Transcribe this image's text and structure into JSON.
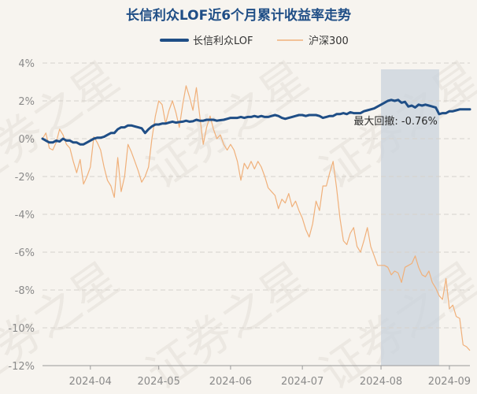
{
  "chart_data": {
    "type": "line",
    "title": "长信利众LOF近6个月累计收益率走势",
    "watermark": "证券之星",
    "ylim": [
      -12,
      4
    ],
    "y_ticks": [
      "4%",
      "2%",
      "0%",
      "-2%",
      "-4%",
      "-6%",
      "-8%",
      "-10%",
      "-12%"
    ],
    "y_tick_values": [
      4,
      2,
      0,
      -2,
      -4,
      -6,
      -8,
      -10,
      -12
    ],
    "x_ticks": [
      "2024-04",
      "2024-05",
      "2024-06",
      "2024-07",
      "2024-08",
      "2024-09"
    ],
    "x_tick_index": [
      14,
      34,
      55,
      76,
      99,
      119
    ],
    "n_points": 126,
    "max_drawdown": {
      "label": "最大回撤: -0.76%",
      "start_index": 99,
      "end_index": 116
    },
    "series": [
      {
        "name": "长信利众LOF",
        "color": "#1f4e86",
        "values": [
          0.0,
          -0.1,
          -0.2,
          -0.2,
          -0.1,
          -0.15,
          0.0,
          -0.1,
          -0.1,
          -0.2,
          -0.2,
          -0.3,
          -0.3,
          -0.2,
          -0.1,
          0.0,
          0.05,
          0.05,
          0.1,
          0.2,
          0.3,
          0.3,
          0.5,
          0.6,
          0.6,
          0.7,
          0.7,
          0.65,
          0.6,
          0.55,
          0.3,
          0.5,
          0.65,
          0.75,
          0.75,
          0.8,
          0.8,
          0.85,
          0.9,
          0.85,
          0.88,
          0.9,
          0.95,
          0.9,
          0.92,
          1.0,
          0.95,
          0.95,
          1.0,
          1.0,
          1.0,
          0.95,
          0.98,
          1.0,
          1.05,
          1.1,
          1.1,
          1.1,
          1.15,
          1.1,
          1.15,
          1.15,
          1.2,
          1.15,
          1.2,
          1.15,
          1.15,
          1.2,
          1.25,
          1.2,
          1.1,
          1.05,
          1.1,
          1.15,
          1.2,
          1.25,
          1.25,
          1.2,
          1.25,
          1.25,
          1.25,
          1.2,
          1.1,
          1.15,
          1.2,
          1.2,
          1.3,
          1.3,
          1.35,
          1.3,
          1.4,
          1.35,
          1.35,
          1.35,
          1.45,
          1.5,
          1.55,
          1.6,
          1.7,
          1.8,
          1.9,
          2.0,
          2.05,
          2.0,
          2.05,
          1.9,
          1.95,
          1.7,
          1.75,
          1.65,
          1.8,
          1.75,
          1.8,
          1.75,
          1.7,
          1.65,
          1.3,
          1.35,
          1.35,
          1.45,
          1.45,
          1.5,
          1.55,
          1.55,
          1.55,
          1.55
        ]
      },
      {
        "name": "沪深300",
        "color": "#f0b07a",
        "values": [
          0.0,
          0.3,
          -0.5,
          -0.6,
          -0.2,
          0.5,
          0.2,
          -0.3,
          -0.5,
          -1.2,
          -1.8,
          -1.1,
          -2.4,
          -2.0,
          -1.5,
          0.1,
          -0.2,
          -0.6,
          -1.5,
          -2.2,
          -2.5,
          -3.1,
          -1.0,
          -2.8,
          -2.0,
          -0.3,
          -0.7,
          -1.2,
          -1.7,
          -2.3,
          -2.0,
          -1.5,
          0.0,
          1.2,
          2.0,
          1.8,
          0.8,
          1.5,
          2.0,
          1.4,
          0.6,
          1.8,
          2.8,
          2.2,
          1.5,
          2.7,
          1.2,
          -0.3,
          0.6,
          1.2,
          0.5,
          0.0,
          0.2,
          -0.3,
          -0.6,
          -0.3,
          -0.6,
          -1.2,
          -2.2,
          -1.3,
          -1.6,
          -1.2,
          -1.6,
          -1.2,
          -1.5,
          -2.0,
          -2.6,
          -2.8,
          -3.0,
          -3.7,
          -3.2,
          -3.4,
          -2.9,
          -3.6,
          -3.3,
          -3.8,
          -4.2,
          -4.8,
          -5.2,
          -4.5,
          -3.3,
          -3.8,
          -2.5,
          -2.5,
          -1.8,
          -1.2,
          -2.6,
          -4.2,
          -5.4,
          -5.6,
          -5.0,
          -4.7,
          -5.7,
          -6.0,
          -5.4,
          -4.7,
          -5.7,
          -6.2,
          -6.7,
          -6.7,
          -6.7,
          -6.8,
          -7.2,
          -7.0,
          -7.1,
          -7.6,
          -6.8,
          -6.7,
          -6.6,
          -6.2,
          -6.8,
          -7.2,
          -7.3,
          -7.0,
          -7.6,
          -7.9,
          -8.3,
          -8.5,
          -7.4,
          -9.0,
          -8.8,
          -9.4,
          -9.5,
          -10.9,
          -11.0,
          -11.2
        ]
      }
    ]
  }
}
